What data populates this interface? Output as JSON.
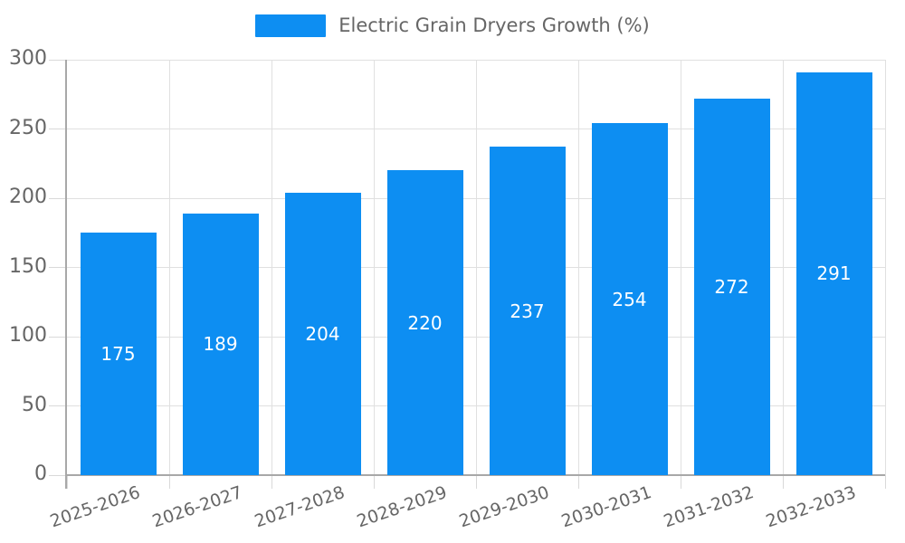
{
  "legend": {
    "label": "Electric Grain Dryers Growth (%)"
  },
  "chart_data": {
    "type": "bar",
    "title": "Electric Grain Dryers Growth (%)",
    "categories": [
      "2025-2026",
      "2026-2027",
      "2027-2028",
      "2028-2029",
      "2029-2030",
      "2030-2031",
      "2031-2032",
      "2032-2033"
    ],
    "values": [
      175,
      189,
      204,
      220,
      237,
      254,
      272,
      291
    ],
    "xlabel": "",
    "ylabel": "",
    "ylim": [
      0,
      300
    ],
    "ytick_step": 50,
    "yticks": [
      0,
      50,
      100,
      150,
      200,
      250,
      300
    ],
    "grid": true,
    "legend_position": "top-center",
    "bar_color": "#0D8EF2",
    "value_label_color": "#ffffff",
    "colors": {
      "grid_line": "#e0e0e0",
      "tick_line": "#d9d9d9",
      "axis_line": "#a8a8a8",
      "tick_text": "#666666",
      "legend_text": "#666666"
    }
  }
}
